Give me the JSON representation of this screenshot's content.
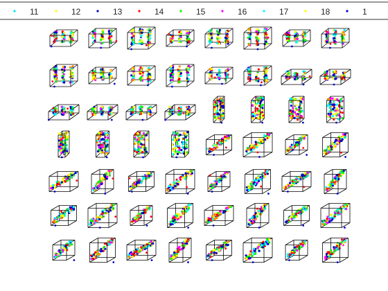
{
  "chart_data": {
    "type": "scatter",
    "title": "",
    "grid": false,
    "legend": {
      "placement": "top",
      "entries": [
        {
          "label": "11",
          "color": "#00e5ee"
        },
        {
          "label": "12",
          "color": "#ffff00"
        },
        {
          "label": "13",
          "color": "#0000cd"
        },
        {
          "label": "14",
          "color": "#ff0000"
        },
        {
          "label": "15",
          "color": "#00ff00"
        },
        {
          "label": "16",
          "color": "#ff00ff"
        },
        {
          "label": "17",
          "color": "#00ffff"
        },
        {
          "label": "18",
          "color": "#ffff00"
        },
        {
          "label": "1",
          "color": "#0000cd"
        }
      ]
    },
    "panel_grid": {
      "rows": 7,
      "cols": 8
    }
  }
}
